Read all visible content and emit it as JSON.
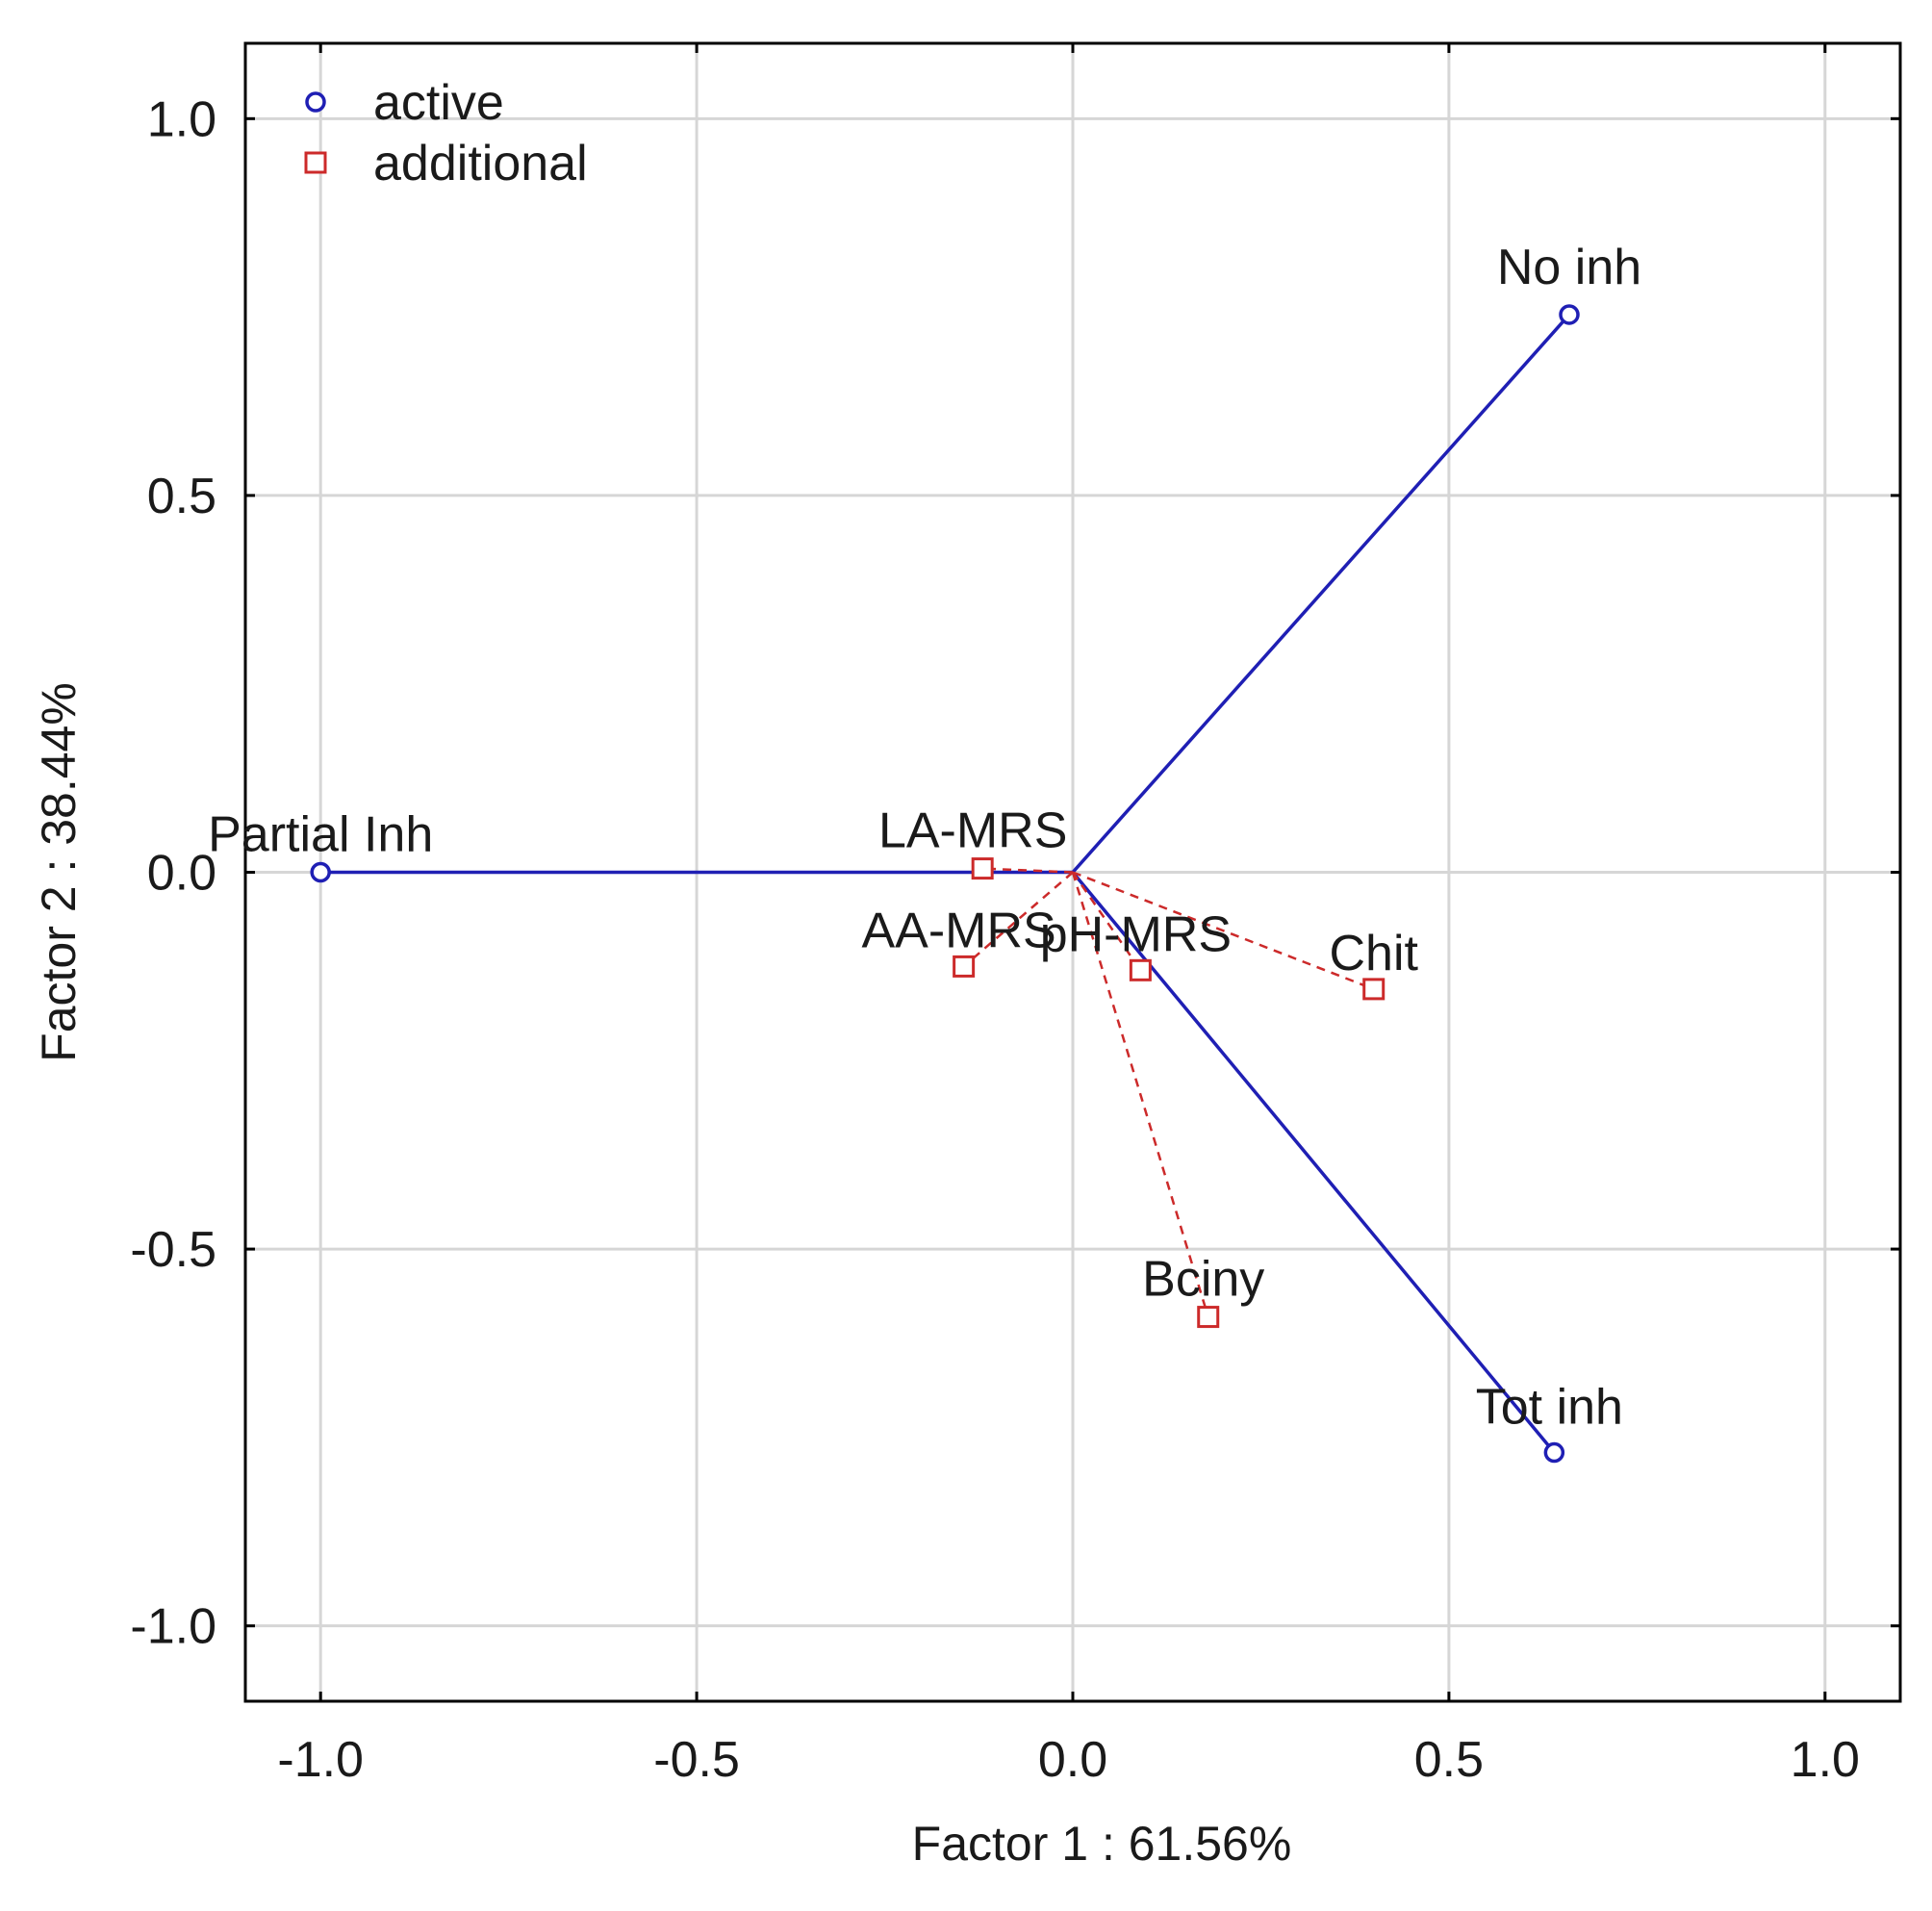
{
  "chart_data": {
    "type": "scatter",
    "title": "",
    "xlabel": "Factor 1 : 61.56%",
    "ylabel": "Factor 2 : 38.44%",
    "xlim": [
      -1.1,
      1.1
    ],
    "ylim": [
      -1.1,
      1.1
    ],
    "xticks": [
      -1.0,
      -0.5,
      0.0,
      0.5,
      1.0
    ],
    "yticks": [
      -1.0,
      -0.5,
      0.0,
      0.5,
      1.0
    ],
    "xtick_labels": [
      "-1.0",
      "-0.5",
      "0.0",
      "0.5",
      "1.0"
    ],
    "ytick_labels": [
      "-1.0",
      "-0.5",
      "0.0",
      "0.5",
      "1.0"
    ],
    "grid": true,
    "legend_position": "top-left",
    "colors": {
      "active": "#1f1fb4",
      "additional": "#cc2a2a",
      "grid": "#d6d6d6",
      "frame": "#000000"
    },
    "series": [
      {
        "name": "active",
        "marker": "circle",
        "line_style": "solid",
        "points": [
          {
            "label": "No inh",
            "x": 0.66,
            "y": 0.74
          },
          {
            "label": "Partial Inh",
            "x": -1.0,
            "y": 0.0
          },
          {
            "label": "Tot inh",
            "x": 0.64,
            "y": -0.77
          }
        ]
      },
      {
        "name": "additional",
        "marker": "square",
        "line_style": "dashed",
        "points": [
          {
            "label": "LA-MRS",
            "x": -0.12,
            "y": 0.005
          },
          {
            "label": "AA-MRS",
            "x": -0.145,
            "y": -0.125
          },
          {
            "label": "pH-MRS",
            "x": 0.09,
            "y": -0.13
          },
          {
            "label": "Chit",
            "x": 0.4,
            "y": -0.155
          },
          {
            "label": "Bciny",
            "x": 0.18,
            "y": -0.59
          }
        ]
      }
    ]
  }
}
